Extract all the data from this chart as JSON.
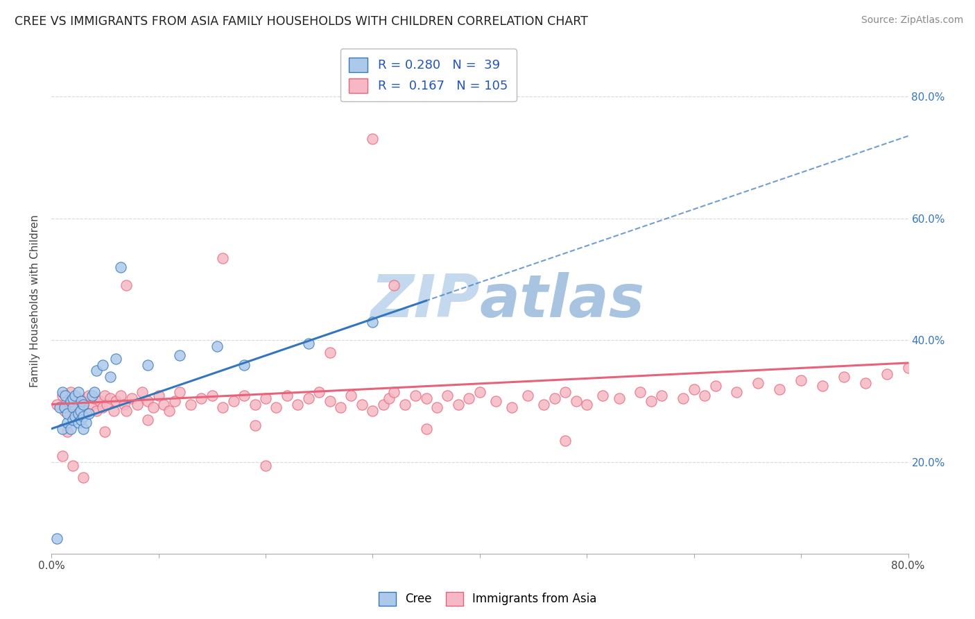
{
  "title": "CREE VS IMMIGRANTS FROM ASIA FAMILY HOUSEHOLDS WITH CHILDREN CORRELATION CHART",
  "source": "Source: ZipAtlas.com",
  "ylabel": "Family Households with Children",
  "xlim": [
    0.0,
    0.8
  ],
  "ylim": [
    0.05,
    0.88
  ],
  "ytick_vals": [
    0.2,
    0.4,
    0.6,
    0.8
  ],
  "ytick_labels": [
    "20.0%",
    "40.0%",
    "60.0%",
    "80.0%"
  ],
  "cree_R": 0.28,
  "cree_N": 39,
  "asia_R": 0.167,
  "asia_N": 105,
  "cree_scatter_color": "#adc9ea",
  "cree_line_color": "#3476bb",
  "asia_scatter_color": "#f5b8c4",
  "asia_line_color": "#e8637a",
  "background_color": "#ffffff",
  "watermark_color": "#c5d9ee",
  "grid_color": "#d8d8d8",
  "cree_x": [
    0.005,
    0.008,
    0.01,
    0.01,
    0.012,
    0.013,
    0.015,
    0.015,
    0.018,
    0.018,
    0.02,
    0.02,
    0.02,
    0.022,
    0.022,
    0.025,
    0.025,
    0.025,
    0.027,
    0.028,
    0.028,
    0.03,
    0.03,
    0.03,
    0.032,
    0.035,
    0.038,
    0.04,
    0.042,
    0.048,
    0.055,
    0.06,
    0.065,
    0.09,
    0.12,
    0.155,
    0.18,
    0.24,
    0.3
  ],
  "cree_y": [
    0.075,
    0.29,
    0.255,
    0.315,
    0.29,
    0.31,
    0.265,
    0.28,
    0.255,
    0.3,
    0.27,
    0.29,
    0.305,
    0.275,
    0.31,
    0.265,
    0.28,
    0.315,
    0.285,
    0.27,
    0.3,
    0.255,
    0.275,
    0.295,
    0.265,
    0.28,
    0.31,
    0.315,
    0.35,
    0.36,
    0.34,
    0.37,
    0.52,
    0.36,
    0.375,
    0.39,
    0.36,
    0.395,
    0.43
  ],
  "asia_x": [
    0.005,
    0.01,
    0.012,
    0.015,
    0.018,
    0.02,
    0.022,
    0.025,
    0.028,
    0.03,
    0.032,
    0.035,
    0.038,
    0.04,
    0.042,
    0.045,
    0.048,
    0.05,
    0.052,
    0.055,
    0.058,
    0.06,
    0.065,
    0.068,
    0.07,
    0.075,
    0.08,
    0.085,
    0.09,
    0.095,
    0.1,
    0.105,
    0.11,
    0.115,
    0.12,
    0.13,
    0.14,
    0.15,
    0.16,
    0.17,
    0.18,
    0.19,
    0.2,
    0.21,
    0.22,
    0.23,
    0.24,
    0.25,
    0.26,
    0.27,
    0.28,
    0.29,
    0.3,
    0.31,
    0.315,
    0.32,
    0.33,
    0.34,
    0.35,
    0.36,
    0.37,
    0.38,
    0.39,
    0.4,
    0.415,
    0.43,
    0.445,
    0.46,
    0.47,
    0.48,
    0.49,
    0.5,
    0.515,
    0.53,
    0.55,
    0.56,
    0.57,
    0.59,
    0.6,
    0.61,
    0.62,
    0.64,
    0.66,
    0.68,
    0.7,
    0.72,
    0.74,
    0.76,
    0.78,
    0.8,
    0.32,
    0.35,
    0.26,
    0.19,
    0.16,
    0.09,
    0.07,
    0.05,
    0.03,
    0.02,
    0.015,
    0.01,
    0.48,
    0.3,
    0.2
  ],
  "asia_y": [
    0.295,
    0.31,
    0.285,
    0.3,
    0.315,
    0.295,
    0.28,
    0.305,
    0.29,
    0.3,
    0.28,
    0.31,
    0.295,
    0.305,
    0.285,
    0.3,
    0.29,
    0.31,
    0.295,
    0.305,
    0.285,
    0.3,
    0.31,
    0.295,
    0.285,
    0.305,
    0.295,
    0.315,
    0.3,
    0.29,
    0.31,
    0.295,
    0.285,
    0.3,
    0.315,
    0.295,
    0.305,
    0.31,
    0.29,
    0.3,
    0.31,
    0.295,
    0.305,
    0.29,
    0.31,
    0.295,
    0.305,
    0.315,
    0.3,
    0.29,
    0.31,
    0.295,
    0.285,
    0.295,
    0.305,
    0.315,
    0.295,
    0.31,
    0.305,
    0.29,
    0.31,
    0.295,
    0.305,
    0.315,
    0.3,
    0.29,
    0.31,
    0.295,
    0.305,
    0.315,
    0.3,
    0.295,
    0.31,
    0.305,
    0.315,
    0.3,
    0.31,
    0.305,
    0.32,
    0.31,
    0.325,
    0.315,
    0.33,
    0.32,
    0.335,
    0.325,
    0.34,
    0.33,
    0.345,
    0.355,
    0.49,
    0.255,
    0.38,
    0.26,
    0.535,
    0.27,
    0.49,
    0.25,
    0.175,
    0.195,
    0.25,
    0.21,
    0.235,
    0.73,
    0.195
  ]
}
